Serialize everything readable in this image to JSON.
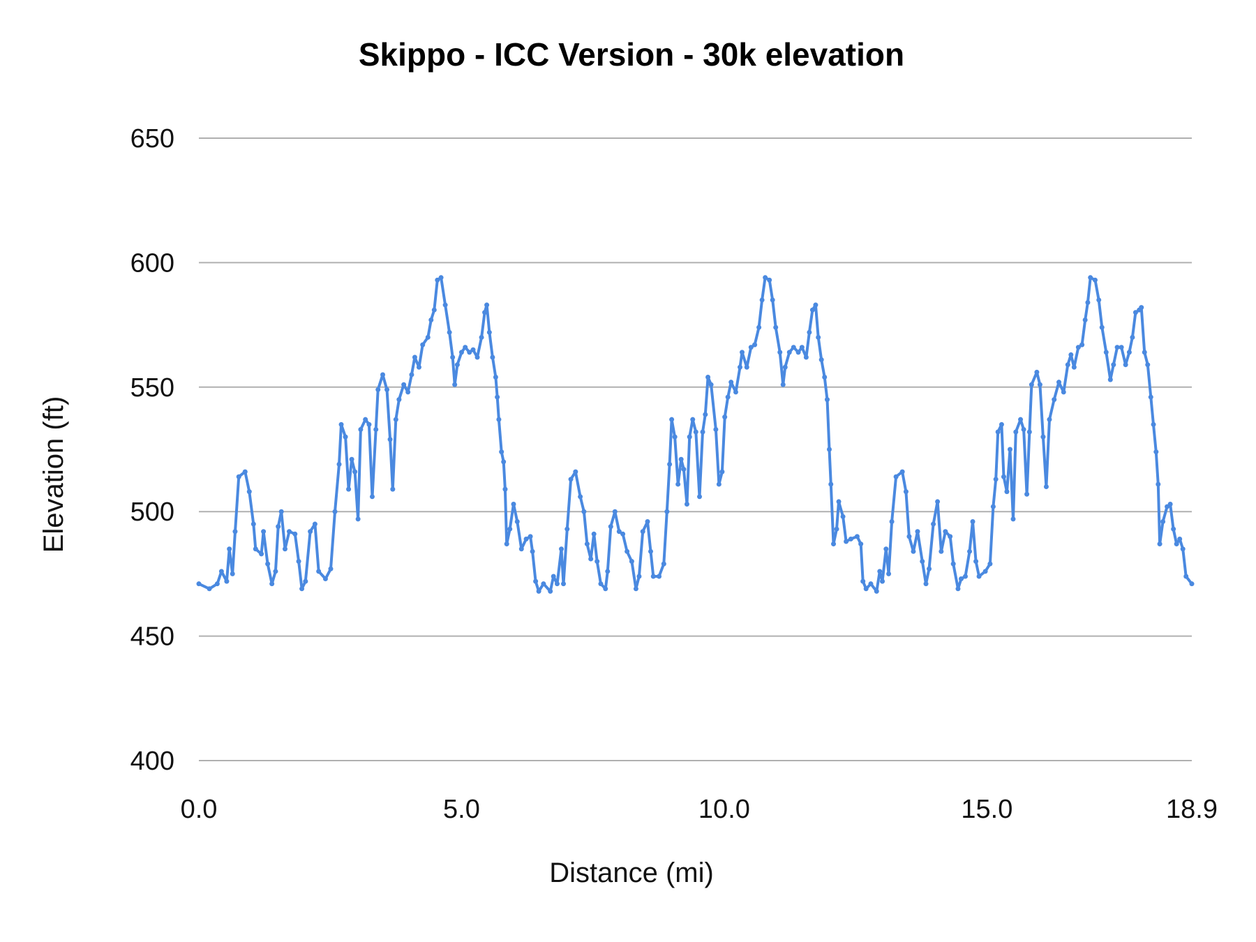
{
  "chart_data": {
    "type": "line",
    "title": "Skippo - ICC Version - 30k elevation",
    "xlabel": "Distance (mi)",
    "ylabel": "Elevation (ft)",
    "xlim": [
      0,
      18.9
    ],
    "ylim": [
      400,
      650
    ],
    "x_ticks": [
      "0.0",
      "5.0",
      "10.0",
      "15.0",
      "18.9"
    ],
    "x_tick_values": [
      0,
      5,
      10,
      15,
      18.9
    ],
    "y_ticks": [
      "400",
      "450",
      "500",
      "550",
      "600",
      "650"
    ],
    "y_tick_values": [
      400,
      450,
      500,
      550,
      600,
      650
    ],
    "grid": "horizontal",
    "legend": "none",
    "markers": true,
    "color": "#4a89e0",
    "grid_color": "#b0b0b0",
    "x": [
      0,
      0.2,
      0.35,
      0.43,
      0.53,
      0.58,
      0.64,
      0.69,
      0.76,
      0.88,
      0.96,
      1.04,
      1.08,
      1.19,
      1.23,
      1.31,
      1.39,
      1.46,
      1.51,
      1.57,
      1.64,
      1.72,
      1.83,
      1.9,
      1.96,
      2.03,
      2.12,
      2.21,
      2.28,
      2.41,
      2.51,
      2.59,
      2.67,
      2.71,
      2.79,
      2.85,
      2.91,
      2.97,
      3.03,
      3.08,
      3.17,
      3.24,
      3.3,
      3.37,
      3.41,
      3.5,
      3.58,
      3.64,
      3.69,
      3.75,
      3.81,
      3.9,
      3.98,
      4.05,
      4.11,
      4.19,
      4.26,
      4.36,
      4.42,
      4.48,
      4.54,
      4.61,
      4.69,
      4.77,
      4.83,
      4.87,
      4.92,
      5.0,
      5.07,
      5.15,
      5.22,
      5.3,
      5.38,
      5.44,
      5.48,
      5.53,
      5.59,
      5.65,
      5.68,
      5.71,
      5.76,
      5.8,
      5.83,
      5.86,
      5.92,
      5.99,
      6.06,
      6.14,
      6.23,
      6.31,
      6.35,
      6.41,
      6.47,
      6.56,
      6.69,
      6.75,
      6.82,
      6.9,
      6.94,
      7.01,
      7.08,
      7.17,
      7.26,
      7.33,
      7.39,
      7.46,
      7.52,
      7.58,
      7.65,
      7.74,
      7.78,
      7.84,
      7.92,
      8.0,
      8.07,
      8.15,
      8.24,
      8.32,
      8.38,
      8.45,
      8.54,
      8.6,
      8.65,
      8.76,
      8.85,
      8.91,
      8.96,
      9.0,
      9.06,
      9.12,
      9.18,
      9.23,
      9.29,
      9.34,
      9.4,
      9.46,
      9.53,
      9.59,
      9.64,
      9.69,
      9.75,
      9.84,
      9.9,
      9.96,
      10.01,
      10.07,
      10.13,
      10.22,
      10.3,
      10.34,
      10.43,
      10.51,
      10.58,
      10.66,
      10.72,
      10.78,
      10.86,
      10.92,
      10.98,
      11.06,
      11.12,
      11.16,
      11.24,
      11.32,
      11.41,
      11.48,
      11.56,
      11.62,
      11.68,
      11.74,
      11.79,
      11.85,
      11.91,
      11.96,
      12.0,
      12.03,
      12.08,
      12.14,
      12.18,
      12.26,
      12.32,
      12.41,
      12.53,
      12.6,
      12.64,
      12.7,
      12.79,
      12.9,
      12.96,
      13.01,
      13.08,
      13.13,
      13.19,
      13.27,
      13.39,
      13.46,
      13.52,
      13.6,
      13.68,
      13.77,
      13.84,
      13.9,
      13.98,
      14.06,
      14.13,
      14.21,
      14.3,
      14.36,
      14.45,
      14.51,
      14.59,
      14.67,
      14.73,
      14.79,
      14.85,
      14.97,
      15.06,
      15.12,
      15.17,
      15.21,
      15.28,
      15.32,
      15.38,
      15.44,
      15.5,
      15.55,
      15.64,
      15.7,
      15.76,
      15.81,
      15.85,
      15.95,
      16.01,
      16.07,
      16.13,
      16.19,
      16.28,
      16.37,
      16.46,
      16.54,
      16.6,
      16.66,
      16.74,
      16.81,
      16.87,
      16.92,
      16.97,
      17.06,
      17.13,
      17.19,
      17.27,
      17.35,
      17.41,
      17.48,
      17.56,
      17.64,
      17.71,
      17.77,
      17.83,
      17.9,
      17.94,
      18.0,
      18.06,
      18.12,
      18.17,
      18.22,
      18.26,
      18.29,
      18.35,
      18.43,
      18.49,
      18.55,
      18.61,
      18.67,
      18.73,
      18.79,
      18.9
    ],
    "y": [
      471,
      469,
      471,
      476,
      472,
      485,
      475,
      492,
      514,
      516,
      508,
      495,
      485,
      483,
      492,
      479,
      471,
      476,
      494,
      500,
      485,
      492,
      491,
      480,
      469,
      472,
      492,
      495,
      476,
      473,
      477,
      500,
      519,
      535,
      530,
      509,
      521,
      516,
      497,
      533,
      537,
      535,
      506,
      533,
      549,
      555,
      549,
      529,
      509,
      537,
      545,
      551,
      548,
      555,
      562,
      558,
      567,
      570,
      577,
      581,
      593,
      594,
      583,
      572,
      562,
      551,
      559,
      564,
      566,
      564,
      565,
      562,
      570,
      580,
      583,
      572,
      562,
      554,
      546,
      537,
      524,
      520,
      509,
      487,
      493,
      503,
      496,
      485,
      489,
      490,
      484,
      472,
      468,
      471,
      468,
      474,
      471,
      485,
      471,
      493,
      513,
      516,
      506,
      500,
      487,
      481,
      491,
      480,
      471,
      469,
      476,
      494,
      500,
      492,
      491,
      484,
      480,
      469,
      474,
      492,
      496,
      484,
      474,
      474,
      479,
      500,
      519,
      537,
      530,
      511,
      521,
      517,
      503,
      530,
      537,
      532,
      506,
      532,
      539,
      554,
      551,
      533,
      511,
      516,
      538,
      546,
      552,
      548,
      558,
      564,
      558,
      566,
      567,
      574,
      585,
      594,
      593,
      585,
      574,
      564,
      551,
      558,
      564,
      566,
      564,
      566,
      562,
      572,
      581,
      583,
      570,
      561,
      554,
      545,
      525,
      511,
      487,
      493,
      504,
      498,
      488,
      489,
      490,
      487,
      472,
      469,
      471,
      468,
      476,
      472,
      485,
      475,
      496,
      514,
      516,
      508,
      490,
      484,
      492,
      480,
      471,
      477,
      495,
      504,
      484,
      492,
      490,
      479,
      469,
      473,
      474,
      484,
      496,
      480,
      474,
      476,
      479,
      502,
      513,
      532,
      535,
      514,
      508,
      525,
      497,
      532,
      537,
      533,
      507,
      532,
      551,
      556,
      551,
      530,
      510,
      537,
      545,
      552,
      548,
      559,
      563,
      558,
      566,
      567,
      577,
      584,
      594,
      593,
      585,
      574,
      564,
      553,
      559,
      566,
      566,
      559,
      564,
      570,
      580,
      581,
      582,
      564,
      559,
      546,
      535,
      524,
      511,
      487,
      496,
      502,
      503,
      493,
      487,
      489,
      485,
      474,
      471
    ]
  }
}
